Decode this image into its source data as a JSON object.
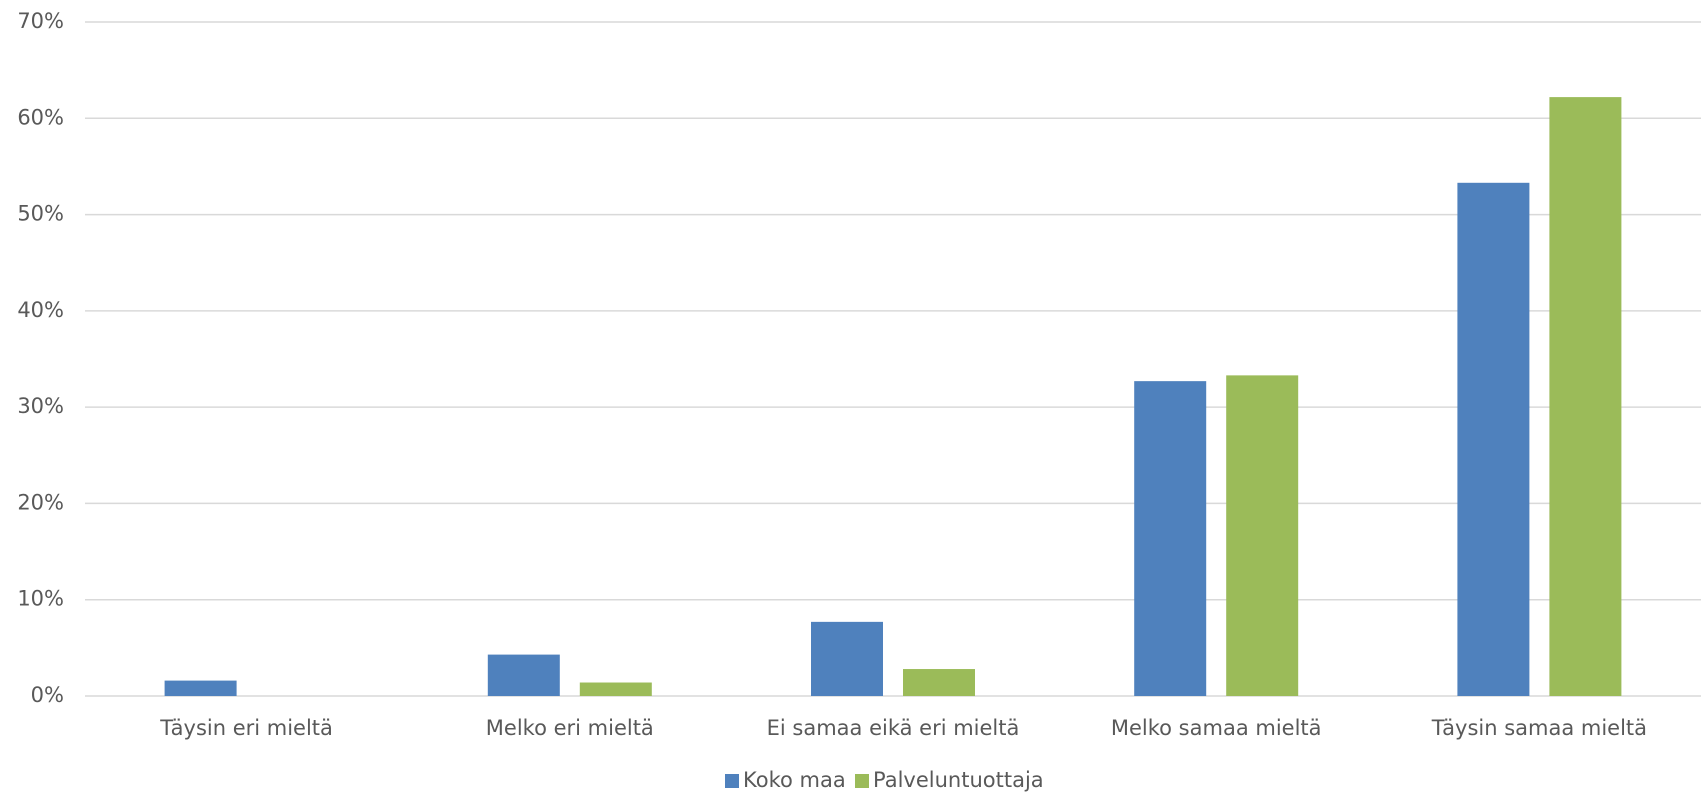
{
  "chart_data": {
    "type": "bar",
    "categories": [
      "Täysin eri mieltä",
      "Melko eri mieltä",
      "Ei samaa eikä eri mieltä",
      "Melko samaa mieltä",
      "Täysin samaa mieltä"
    ],
    "series": [
      {
        "name": "Koko maa",
        "color": "#4f81bd",
        "values": [
          1.6,
          4.3,
          7.7,
          32.7,
          53.3
        ]
      },
      {
        "name": "Palveluntuottaja",
        "color": "#9bbb59",
        "values": [
          0,
          1.4,
          2.8,
          33.3,
          62.2
        ]
      }
    ],
    "ylim": [
      0,
      70
    ],
    "yticks": [
      {
        "value": 0,
        "label": "0%"
      },
      {
        "value": 10,
        "label": "10%"
      },
      {
        "value": 20,
        "label": "20%"
      },
      {
        "value": 30,
        "label": "30%"
      },
      {
        "value": 40,
        "label": "40%"
      },
      {
        "value": 50,
        "label": "50%"
      },
      {
        "value": 60,
        "label": "60%"
      },
      {
        "value": 70,
        "label": "70%"
      }
    ],
    "grid": true,
    "legend": "bottom"
  }
}
